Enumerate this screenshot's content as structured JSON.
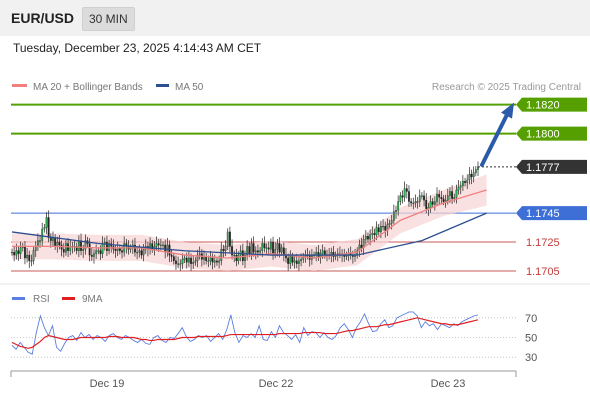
{
  "header": {
    "symbol": "EUR/USD",
    "timeframe": "30 MIN",
    "timestamp": "Tuesday, December 23, 2025 4:14:43 AM CET"
  },
  "legend": {
    "ma20_label": "MA 20 + Bollinger Bands",
    "ma50_label": "MA 50",
    "ma20_color": "#f08080",
    "ma50_color": "#2d4f8f",
    "source": "Research © 2025 Trading Central"
  },
  "chart_data": [
    {
      "type": "candlestick",
      "title": "EUR/USD 30 MIN",
      "ylim": [
        1.1696,
        1.1826
      ],
      "x_ticks": [
        "Dec 19",
        "Dec 22",
        "Dec 23"
      ],
      "current_price": {
        "label": "1.1777",
        "value": 1.1777,
        "color": "#333333"
      },
      "levels": [
        {
          "label": "1.1820",
          "value": 1.182,
          "kind": "target",
          "color": "#55a000"
        },
        {
          "label": "1.1800",
          "value": 1.18,
          "kind": "target",
          "color": "#55a000"
        },
        {
          "label": "1.1745",
          "value": 1.1745,
          "kind": "pivot",
          "color": "#3d6fd6"
        },
        {
          "label": "1.1725",
          "value": 1.1725,
          "kind": "support",
          "color": "#c23b3b"
        },
        {
          "label": "1.1705",
          "value": 1.1705,
          "kind": "support",
          "color": "#c23b3b"
        }
      ],
      "projection": {
        "from": 1.1777,
        "to": 1.182,
        "direction": "up"
      },
      "close_series": [
        1.1718,
        1.1716,
        1.1719,
        1.1717,
        1.1721,
        1.1722,
        1.1714,
        1.1716,
        1.1712,
        1.1712,
        1.1719,
        1.1722,
        1.1726,
        1.1726,
        1.1734,
        1.1735,
        1.1742,
        1.1728,
        1.1726,
        1.1728,
        1.1722,
        1.1725,
        1.1723,
        1.172,
        1.1718,
        1.1724,
        1.1719,
        1.1722,
        1.1722,
        1.1722,
        1.1719,
        1.1726,
        1.1719,
        1.172,
        1.1726,
        1.1724,
        1.1716,
        1.1715,
        1.1717,
        1.1719,
        1.1719,
        1.1717,
        1.1724,
        1.1725,
        1.1719,
        1.1724,
        1.1722,
        1.172,
        1.1719,
        1.1721,
        1.1719,
        1.1718,
        1.1724,
        1.1722,
        1.172,
        1.1721,
        1.1723,
        1.1718,
        1.1718,
        1.1719,
        1.1716,
        1.172,
        1.1722,
        1.172,
        1.1724,
        1.172,
        1.1722,
        1.1724,
        1.1723,
        1.1723,
        1.1723,
        1.1718,
        1.1723,
        1.1716,
        1.1715,
        1.1712,
        1.171,
        1.171,
        1.171,
        1.1713,
        1.1714,
        1.1711,
        1.1714,
        1.171,
        1.1711,
        1.1712,
        1.1716,
        1.1717,
        1.1713,
        1.1715,
        1.1712,
        1.1712,
        1.1714,
        1.1711,
        1.1712,
        1.1711,
        1.1712,
        1.172,
        1.1719,
        1.1722,
        1.1732,
        1.1722,
        1.1716,
        1.1716,
        1.1712,
        1.1716,
        1.1719,
        1.1712,
        1.1716,
        1.1722,
        1.1717,
        1.1724,
        1.1718,
        1.1719,
        1.1718,
        1.1719,
        1.1724,
        1.1721,
        1.1721,
        1.172,
        1.1725,
        1.1717,
        1.172,
        1.1724,
        1.1718,
        1.1721,
        1.1716,
        1.1714,
        1.171,
        1.1715,
        1.1711,
        1.1712,
        1.171,
        1.1712,
        1.1713,
        1.1715,
        1.1716,
        1.1716,
        1.1713,
        1.1716,
        1.1716,
        1.1718,
        1.1715,
        1.1717,
        1.1719,
        1.1716,
        1.1716,
        1.1716,
        1.1718,
        1.1715,
        1.1716,
        1.1717,
        1.1717,
        1.1716,
        1.1715,
        1.1716,
        1.1717,
        1.1716,
        1.1715,
        1.1716,
        1.1719,
        1.1723,
        1.1721,
        1.1727,
        1.1729,
        1.1727,
        1.173,
        1.1731,
        1.173,
        1.1735,
        1.1732,
        1.1736,
        1.1736,
        1.1733,
        1.1737,
        1.1738,
        1.174,
        1.1746,
        1.1747,
        1.1753,
        1.1757,
        1.1756,
        1.1762,
        1.176,
        1.1753,
        1.1752,
        1.1752,
        1.1753,
        1.1753,
        1.1757,
        1.1757,
        1.1754,
        1.1748,
        1.1749,
        1.1753,
        1.1751,
        1.1753,
        1.1758,
        1.1756,
        1.1755,
        1.1753,
        1.1754,
        1.1757,
        1.176,
        1.1755,
        1.1756,
        1.1761,
        1.1763,
        1.1764,
        1.1767,
        1.1766,
        1.1768,
        1.1772,
        1.177,
        1.1773,
        1.1775,
        1.1777
      ],
      "ma20": [
        {
          "x": 0,
          "y": 1.1722
        },
        {
          "x": 20,
          "y": 1.1722
        },
        {
          "x": 40,
          "y": 1.1721
        },
        {
          "x": 60,
          "y": 1.1721
        },
        {
          "x": 80,
          "y": 1.1716
        },
        {
          "x": 100,
          "y": 1.1714
        },
        {
          "x": 120,
          "y": 1.1717
        },
        {
          "x": 140,
          "y": 1.1714
        },
        {
          "x": 160,
          "y": 1.1718
        },
        {
          "x": 180,
          "y": 1.174
        },
        {
          "x": 200,
          "y": 1.1752
        },
        {
          "x": 220,
          "y": 1.1761
        }
      ],
      "ma50": [
        {
          "x": 0,
          "y": 1.1732
        },
        {
          "x": 40,
          "y": 1.1724
        },
        {
          "x": 80,
          "y": 1.1719
        },
        {
          "x": 120,
          "y": 1.1716
        },
        {
          "x": 160,
          "y": 1.1716
        },
        {
          "x": 190,
          "y": 1.1726
        },
        {
          "x": 220,
          "y": 1.1745
        }
      ]
    },
    {
      "type": "line",
      "legend": [
        "RSI",
        "9MA"
      ],
      "ylim": [
        20,
        80
      ],
      "y_ticks": [
        "70",
        "50",
        "30"
      ],
      "series": [
        {
          "name": "RSI",
          "color": "#5b7fe0",
          "values": [
            42,
            38,
            45,
            40,
            35,
            33,
            55,
            72,
            60,
            52,
            62,
            40,
            36,
            44,
            50,
            52,
            47,
            55,
            50,
            53,
            48,
            52,
            50,
            46,
            52,
            54,
            50,
            48,
            52,
            50,
            47,
            45,
            48,
            44,
            43,
            50,
            52,
            47,
            45,
            50,
            49,
            54,
            60,
            51,
            46,
            48,
            52,
            50,
            52,
            46,
            50,
            54,
            48,
            58,
            73,
            55,
            45,
            52,
            50,
            54,
            50,
            62,
            48,
            47,
            56,
            50,
            62,
            55,
            52,
            48,
            53,
            45,
            60,
            52,
            56,
            55,
            50,
            55,
            50,
            48,
            52,
            60,
            64,
            58,
            50,
            60,
            66,
            74,
            64,
            56,
            57,
            64,
            68,
            60,
            62,
            70,
            72,
            74,
            76,
            76,
            72,
            60,
            66,
            62,
            64,
            58,
            64,
            62,
            60,
            64,
            62,
            66,
            68,
            70,
            72,
            73
          ]
        },
        {
          "name": "9MA",
          "color": "#e02020",
          "values": [
            45,
            43,
            41,
            40,
            39,
            40,
            43,
            46,
            50,
            52,
            51,
            50,
            49,
            48,
            48,
            48,
            49,
            50,
            50,
            50,
            50,
            50,
            50,
            50,
            51,
            51,
            51,
            50,
            50,
            50,
            50,
            49,
            48,
            48,
            47,
            47,
            48,
            48,
            48,
            48,
            48,
            49,
            50,
            50,
            50,
            50,
            51,
            51,
            51,
            51,
            51,
            51,
            51,
            52,
            53,
            53,
            53,
            53,
            53,
            53,
            53,
            53,
            53,
            53,
            53,
            53,
            54,
            54,
            54,
            54,
            54,
            54,
            55,
            55,
            55,
            55,
            55,
            54,
            54,
            54,
            54,
            55,
            56,
            57,
            57,
            58,
            59,
            60,
            61,
            61,
            61,
            62,
            63,
            63,
            64,
            65,
            66,
            67,
            68,
            69,
            70,
            69,
            68,
            67,
            66,
            65,
            64,
            64,
            63,
            63,
            63,
            64,
            65,
            66,
            67,
            68
          ]
        }
      ]
    }
  ]
}
